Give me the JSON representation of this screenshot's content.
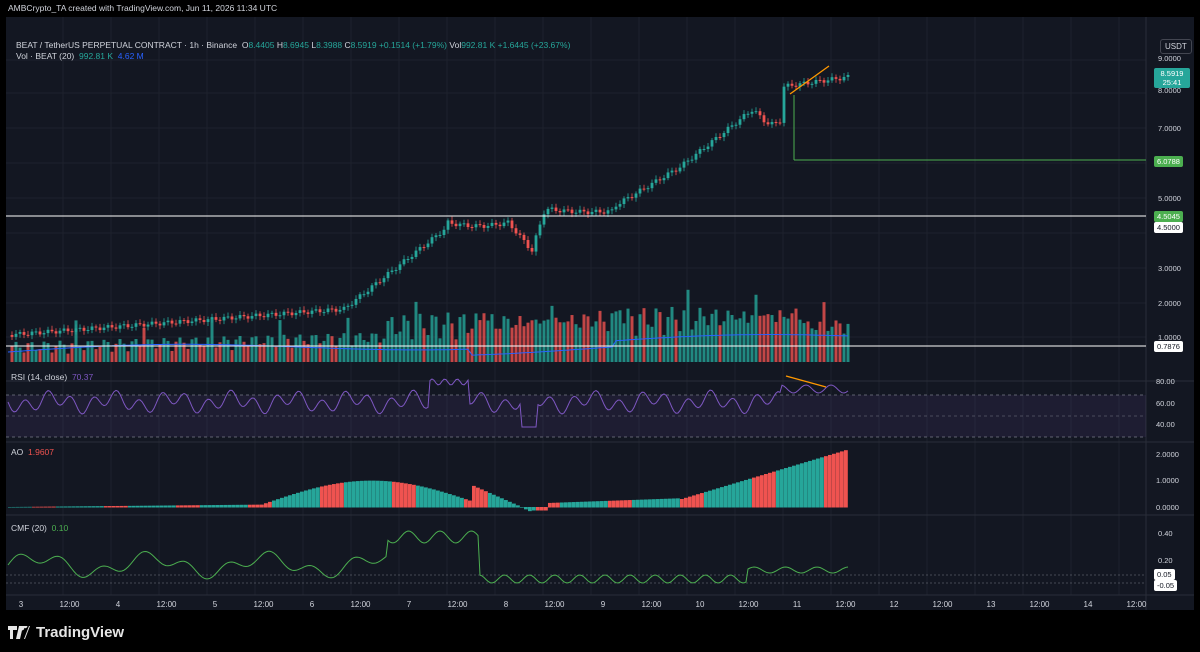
{
  "credit": "AMBCrypto_TA created with TradingView.com, Jun 11, 2026 11:34 UTC",
  "header": {
    "symbol": "BEAT / TetherUS PERPETUAL CONTRACT · 1h · Binance",
    "o_label": "O",
    "o": "8.4405",
    "h_label": "H",
    "h": "8.6945",
    "l_label": "L",
    "l": "8.3988",
    "c_label": "C",
    "c": "8.5919",
    "change": "+0.1514 (+1.79%)",
    "vol_label": "Vol",
    "vol": "992.81 K",
    "vol_change": "+1.6445 (+23.67%)"
  },
  "volume_legend": {
    "label": "Vol · BEAT (20)",
    "v1": "992.81 K",
    "v2": "4.62 M"
  },
  "currency": "USDT",
  "price_axis": [
    "9.0000",
    "8.0000",
    "7.0000",
    "6.0000",
    "5.0000",
    "3.0000",
    "2.0000",
    "1.0000"
  ],
  "price_tags": {
    "last": "8.5919",
    "countdown": "25:41",
    "line1": "6.0788",
    "line2": "4.5045",
    "line3": "4.5000",
    "line4": "0.7876"
  },
  "rsi": {
    "label": "RSI (14, close)",
    "value": "70.37",
    "axis": [
      "80.00",
      "60.00",
      "40.00"
    ]
  },
  "ao": {
    "label": "AO",
    "value": "1.9607",
    "axis": [
      "2.0000",
      "1.0000",
      "0.0000"
    ]
  },
  "cmf": {
    "label": "CMF (20)",
    "value": "0.10",
    "axis": [
      "0.20",
      "0.40"
    ],
    "tags": [
      "0.05",
      "-0.05"
    ]
  },
  "time_axis": [
    "3",
    "12:00",
    "4",
    "12:00",
    "5",
    "12:00",
    "6",
    "12:00",
    "7",
    "12:00",
    "8",
    "12:00",
    "9",
    "12:00",
    "10",
    "12:00",
    "11",
    "12:00",
    "12",
    "12:00",
    "13",
    "12:00",
    "14",
    "12:00"
  ],
  "footer": "TradingView",
  "colors": {
    "up": "#26a69a",
    "down": "#ef5350",
    "bg": "#131722",
    "rsi": "#7e57c2",
    "cmf": "#4caf50",
    "trend": "#ff9800",
    "vol_ma": "#2962ff"
  }
}
